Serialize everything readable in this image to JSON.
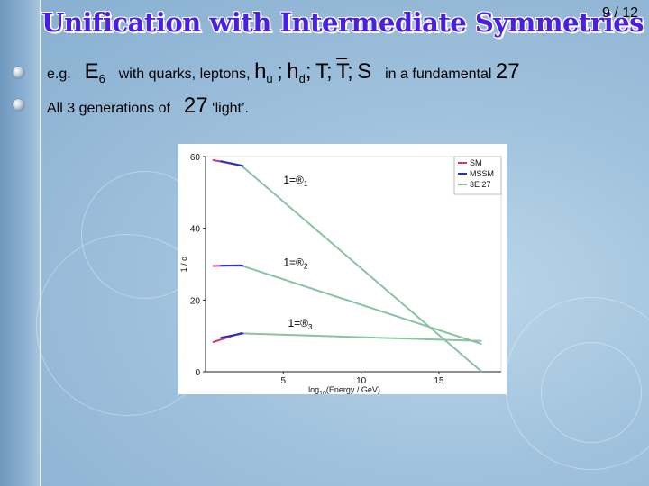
{
  "slide": {
    "title": "Unification with Intermediate Symmetries",
    "page": "9 / 12",
    "bullet1": {
      "prefix": "e.g.",
      "group": "E",
      "group_sub": "6",
      "text_with": "with quarks, leptons,",
      "hu": "h",
      "hu_sub": "u",
      "hd": "h",
      "hd_sub": "d",
      "T": "T",
      "Tbar": "T",
      "S": "S",
      "sep": ";",
      "text_in": "in a fundamental",
      "rep": "27"
    },
    "bullet2": {
      "text_before": "All 3 generations of",
      "rep": "27",
      "text_after": "‘light’."
    }
  },
  "chart_data": {
    "type": "line",
    "xlim": [
      0,
      19
    ],
    "ylim": [
      0,
      60
    ],
    "x_ticks": [
      5,
      10,
      15
    ],
    "y_ticks": [
      0,
      20,
      40,
      60
    ],
    "xlabel_main": "log",
    "xlabel_sub": "10",
    "xlabel_rest": "(Energy / GeV)",
    "ylabel": "1 / α",
    "legend": [
      "SM",
      "MSSM",
      "3E 27"
    ],
    "legend_position": "top-right",
    "series": [
      {
        "name": "SM",
        "color": "#cc3377",
        "lines": [
          [
            [
              0.5,
              59
            ],
            [
              2.3,
              57.5
            ]
          ],
          [
            [
              0.5,
              29.5
            ],
            [
              2.3,
              29.7
            ]
          ],
          [
            [
              0.5,
              8.3
            ],
            [
              2.3,
              10.8
            ]
          ]
        ]
      },
      {
        "name": "MSSM",
        "color": "#2233bb",
        "lines": [
          [
            [
              1.0,
              58.7
            ],
            [
              2.4,
              57.4
            ]
          ],
          [
            [
              1.0,
              29.6
            ],
            [
              2.4,
              29.6
            ]
          ],
          [
            [
              1.0,
              9.5
            ],
            [
              2.4,
              10.7
            ]
          ]
        ]
      },
      {
        "name": "3E 27",
        "color": "#88c4a2",
        "lines": [
          [
            [
              2.3,
              57.5
            ],
            [
              17.7,
              0.2
            ]
          ],
          [
            [
              2.3,
              29.6
            ],
            [
              17.7,
              7.8
            ]
          ],
          [
            [
              2.3,
              10.7
            ],
            [
              17.7,
              8.6
            ]
          ]
        ]
      }
    ],
    "annotations": [
      {
        "text": "1=®",
        "sub": "1",
        "x": 5.0,
        "y": 52.5
      },
      {
        "text": "1=®",
        "sub": "2",
        "x": 5.0,
        "y": 29.5
      },
      {
        "text": "1=®",
        "sub": "3",
        "x": 5.3,
        "y": 12.5
      }
    ]
  }
}
